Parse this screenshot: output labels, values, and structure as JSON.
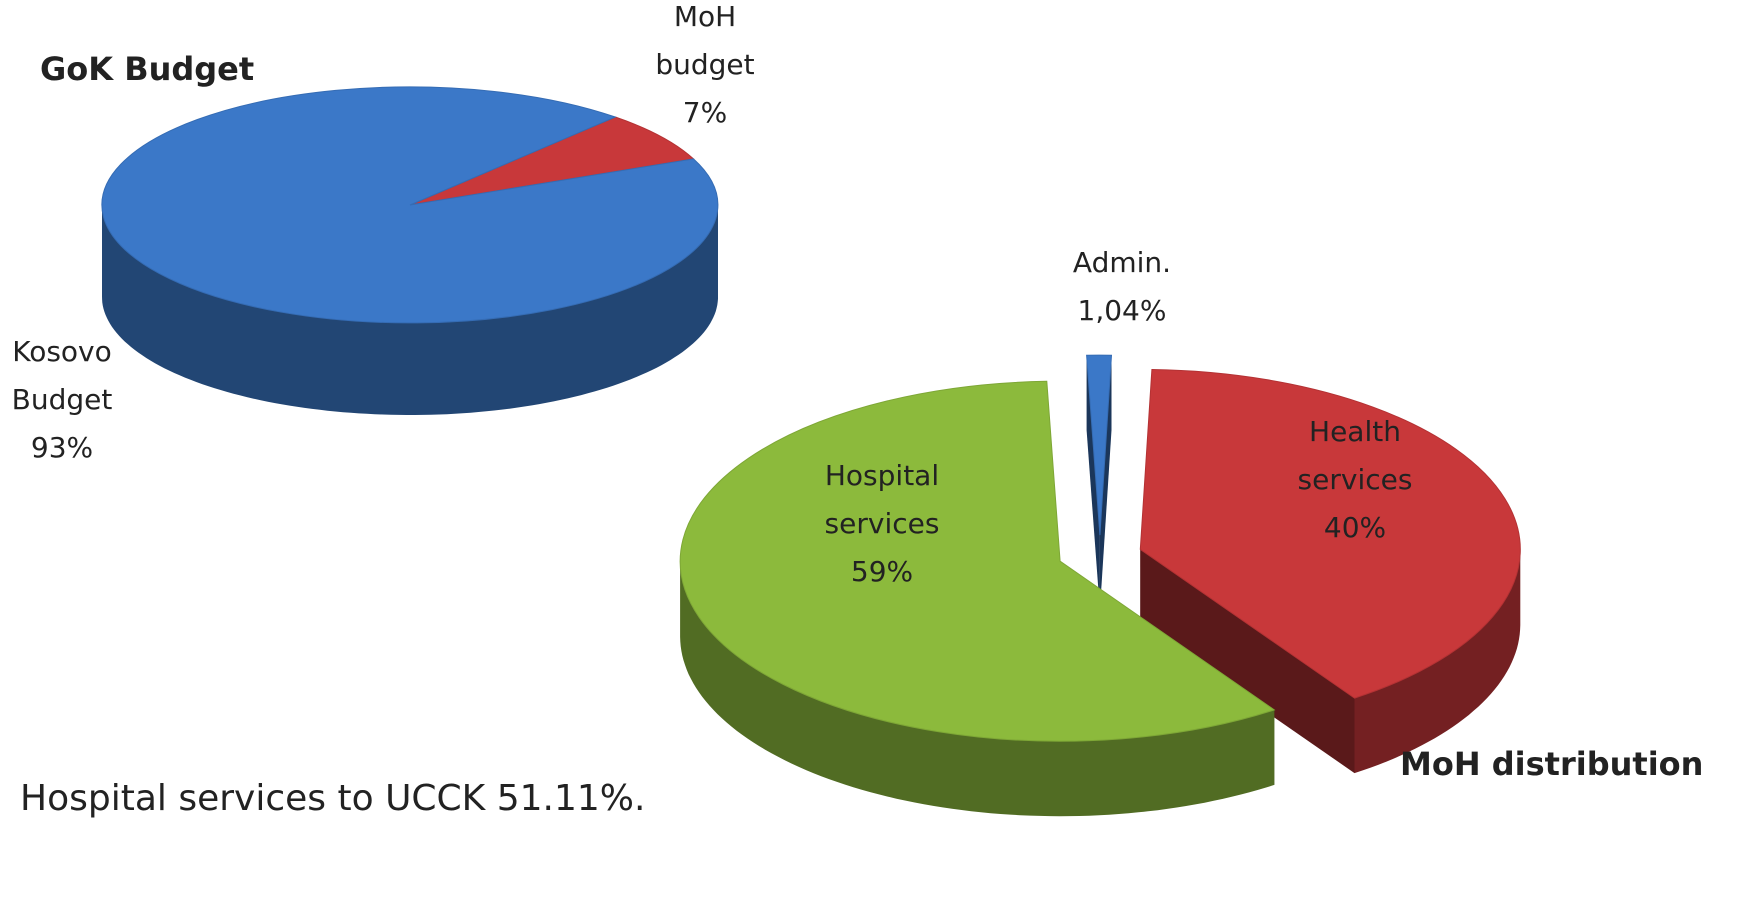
{
  "chart_data": [
    {
      "type": "pie3d",
      "title": "GoK Budget",
      "categories": [
        "Kosovo Budget",
        "MoH budget"
      ],
      "values": [
        93,
        7
      ],
      "value_labels": [
        "93%",
        "7%"
      ],
      "colors": [
        "#3b78c8",
        "#c8383a"
      ]
    },
    {
      "type": "pie3d",
      "title": "MoH distribution",
      "categories": [
        "Admin.",
        "Health services",
        "Hospital services"
      ],
      "values": [
        1.04,
        40,
        59
      ],
      "value_labels": [
        "1,04%",
        "40%",
        "59%"
      ],
      "colors": [
        "#3b78c8",
        "#c8383a",
        "#8cba3c"
      ]
    }
  ],
  "footnote": "Hospital services to UCCK  51.11%."
}
